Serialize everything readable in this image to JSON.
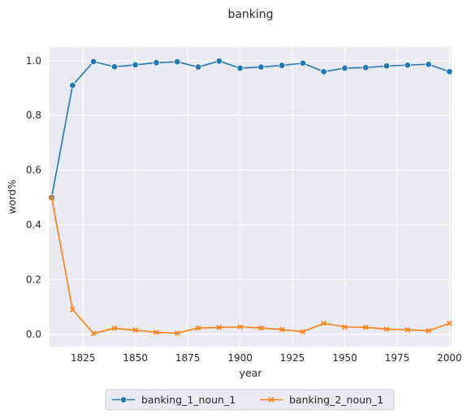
{
  "chart_data": {
    "type": "line",
    "title": "banking",
    "xlabel": "year",
    "ylabel": "word%",
    "xlim": [
      1809,
      2001
    ],
    "ylim": [
      -0.045,
      1.05
    ],
    "x_ticks": [
      1825,
      1850,
      1875,
      1900,
      1925,
      1950,
      1975,
      2000
    ],
    "y_ticks": [
      0.0,
      0.2,
      0.4,
      0.6,
      0.8,
      1.0
    ],
    "x_tick_labels": [
      "1825",
      "1850",
      "1875",
      "1900",
      "1925",
      "1950",
      "1975",
      "2000"
    ],
    "y_tick_labels": [
      "0.0",
      "0.2",
      "0.4",
      "0.6",
      "0.8",
      "1.0"
    ],
    "grid": true,
    "legend_position": "bottom-center, outside plot",
    "x": [
      1810,
      1820,
      1830,
      1840,
      1850,
      1860,
      1870,
      1880,
      1890,
      1900,
      1910,
      1920,
      1930,
      1940,
      1950,
      1960,
      1970,
      1980,
      1990,
      2000
    ],
    "series": [
      {
        "name": "banking_1_noun_1",
        "color": "#1f77b4",
        "marker": "circle",
        "values": [
          0.5,
          0.91,
          0.997,
          0.978,
          0.985,
          0.993,
          0.996,
          0.977,
          0.999,
          0.973,
          0.977,
          0.983,
          0.991,
          0.96,
          0.973,
          0.975,
          0.981,
          0.984,
          0.987,
          0.96
        ]
      },
      {
        "name": "banking_2_noun_1",
        "color": "#ff7f0e",
        "marker": "x",
        "values": [
          0.5,
          0.09,
          0.003,
          0.022,
          0.015,
          0.007,
          0.004,
          0.023,
          0.025,
          0.027,
          0.023,
          0.017,
          0.009,
          0.04,
          0.027,
          0.025,
          0.019,
          0.016,
          0.013,
          0.04
        ]
      }
    ]
  }
}
